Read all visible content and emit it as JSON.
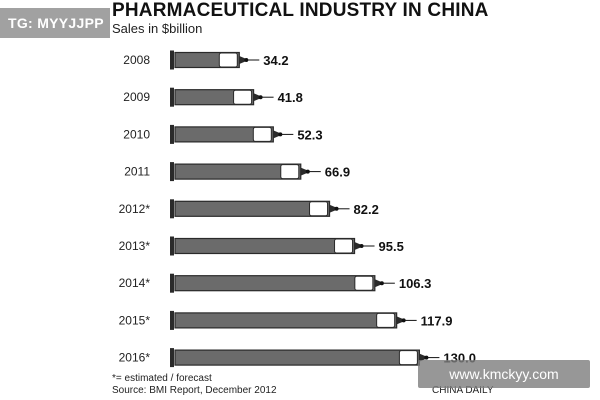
{
  "header": {
    "title": "PHARMACEUTICAL INDUSTRY IN CHINA",
    "subtitle": "Sales in $billion"
  },
  "footer": {
    "footnote": "*= estimated / forecast",
    "source": "Source: BMI Report, December 2012",
    "credit": "CHINA DAILY"
  },
  "watermarks": {
    "top_left": "TG: MYYJJPP",
    "bottom_right": "www.kmckyy.com"
  },
  "colors": {
    "barrel": "#6b6b6b",
    "barrel_outline": "#2a2a2a",
    "plunger": "#ffffff",
    "needle": "#111111"
  },
  "chart_data": {
    "type": "bar",
    "orientation": "horizontal",
    "title": "PHARMACEUTICAL INDUSTRY IN CHINA",
    "subtitle": "Sales in $billion",
    "categories": [
      "2008",
      "2009",
      "2010",
      "2011",
      "2012*",
      "2013*",
      "2014*",
      "2015*",
      "2016*"
    ],
    "values": [
      34.2,
      41.8,
      52.3,
      66.9,
      82.2,
      95.5,
      106.3,
      117.9,
      130.0
    ],
    "value_labels": [
      "34.2",
      "41.8",
      "52.3",
      "66.9",
      "82.2",
      "95.5",
      "106.3",
      "117.9",
      "130.0"
    ],
    "xlabel": "",
    "ylabel": "",
    "grid": false,
    "legend": "none",
    "annotations": [
      "*= estimated / forecast"
    ]
  }
}
